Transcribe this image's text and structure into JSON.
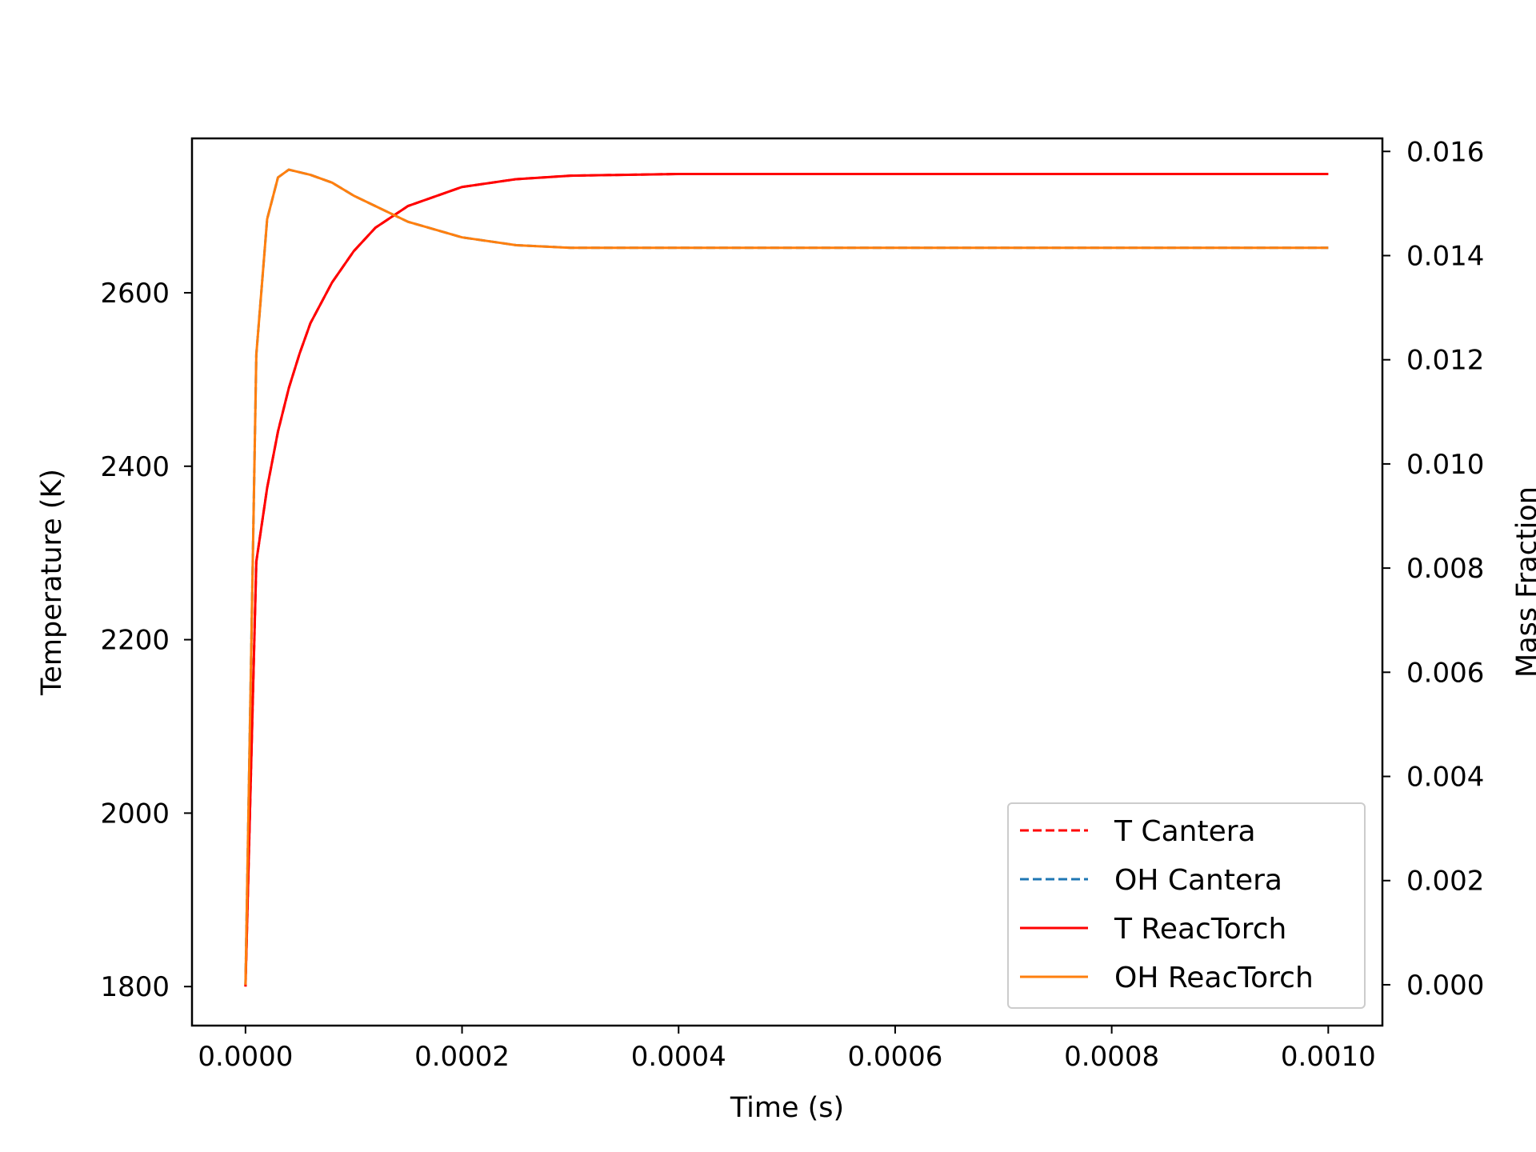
{
  "chart_data": {
    "type": "line",
    "xlabel": "Time (s)",
    "ylabel_left": "Temperature (K)",
    "ylabel_right": "Mass Fraction",
    "xlim": [
      -4.94e-05,
      0.00105
    ],
    "ylim_left": [
      1755,
      2778
    ],
    "ylim_right": [
      -0.000784,
      0.01625
    ],
    "x_ticks": [
      0.0,
      0.0002,
      0.0004,
      0.0006,
      0.0008,
      0.001
    ],
    "x_tick_labels": [
      "0.0000",
      "0.0002",
      "0.0004",
      "0.0006",
      "0.0008",
      "0.0010"
    ],
    "y_left_ticks": [
      1800,
      2000,
      2200,
      2400,
      2600
    ],
    "y_left_tick_labels": [
      "1800",
      "2000",
      "2200",
      "2400",
      "2600"
    ],
    "y_right_ticks": [
      0.0,
      0.002,
      0.004,
      0.006,
      0.008,
      0.01,
      0.012,
      0.014,
      0.016
    ],
    "y_right_tick_labels": [
      "0.000",
      "0.002",
      "0.004",
      "0.006",
      "0.008",
      "0.010",
      "0.012",
      "0.014",
      "0.016"
    ],
    "legend_position": "lower-right",
    "series": [
      {
        "name": "T Cantera",
        "axis": "left",
        "style": "dashed",
        "color": "#ff0000",
        "x": [
          0,
          1e-05,
          2e-05,
          3e-05,
          4e-05,
          5e-05,
          6e-05,
          8e-05,
          0.0001,
          0.00012,
          0.00015,
          0.0002,
          0.00025,
          0.0003,
          0.0004,
          0.0005,
          0.0006,
          0.0007,
          0.0008,
          0.0009,
          0.001
        ],
        "y": [
          1800,
          2290,
          2375,
          2440,
          2490,
          2530,
          2565,
          2612,
          2648,
          2675,
          2700,
          2722,
          2731,
          2735,
          2737,
          2737,
          2737,
          2737,
          2737,
          2737,
          2737
        ]
      },
      {
        "name": "OH Cantera",
        "axis": "right",
        "style": "dashed",
        "color": "#1f77b4",
        "x": [
          0,
          1e-05,
          2e-05,
          3e-05,
          4e-05,
          5e-05,
          6e-05,
          8e-05,
          0.0001,
          0.00012,
          0.00015,
          0.0002,
          0.00025,
          0.0003,
          0.0004,
          0.0005,
          0.0006,
          0.0007,
          0.0008,
          0.0009,
          0.001
        ],
        "y": [
          0.0,
          0.0121,
          0.0147,
          0.0155,
          0.01565,
          0.0156,
          0.01555,
          0.0154,
          0.01515,
          0.01495,
          0.01465,
          0.01435,
          0.0142,
          0.01415,
          0.01415,
          0.01415,
          0.01415,
          0.01415,
          0.01415,
          0.01415,
          0.01415
        ]
      },
      {
        "name": "T ReacTorch",
        "axis": "left",
        "style": "solid",
        "color": "#ff0000",
        "x": [
          0,
          1e-05,
          2e-05,
          3e-05,
          4e-05,
          5e-05,
          6e-05,
          8e-05,
          0.0001,
          0.00012,
          0.00015,
          0.0002,
          0.00025,
          0.0003,
          0.0004,
          0.0005,
          0.0006,
          0.0007,
          0.0008,
          0.0009,
          0.001
        ],
        "y": [
          1800,
          2290,
          2375,
          2440,
          2490,
          2530,
          2565,
          2612,
          2648,
          2675,
          2700,
          2722,
          2731,
          2735,
          2737,
          2737,
          2737,
          2737,
          2737,
          2737,
          2737
        ]
      },
      {
        "name": "OH ReacTorch",
        "axis": "right",
        "style": "solid",
        "color": "#ff7f0e",
        "x": [
          0,
          1e-05,
          2e-05,
          3e-05,
          4e-05,
          5e-05,
          6e-05,
          8e-05,
          0.0001,
          0.00012,
          0.00015,
          0.0002,
          0.00025,
          0.0003,
          0.0004,
          0.0005,
          0.0006,
          0.0007,
          0.0008,
          0.0009,
          0.001
        ],
        "y": [
          0.0,
          0.0121,
          0.0147,
          0.0155,
          0.01565,
          0.0156,
          0.01555,
          0.0154,
          0.01515,
          0.01495,
          0.01465,
          0.01435,
          0.0142,
          0.01415,
          0.01415,
          0.01415,
          0.01415,
          0.01415,
          0.01415,
          0.01415,
          0.01415
        ]
      }
    ]
  }
}
